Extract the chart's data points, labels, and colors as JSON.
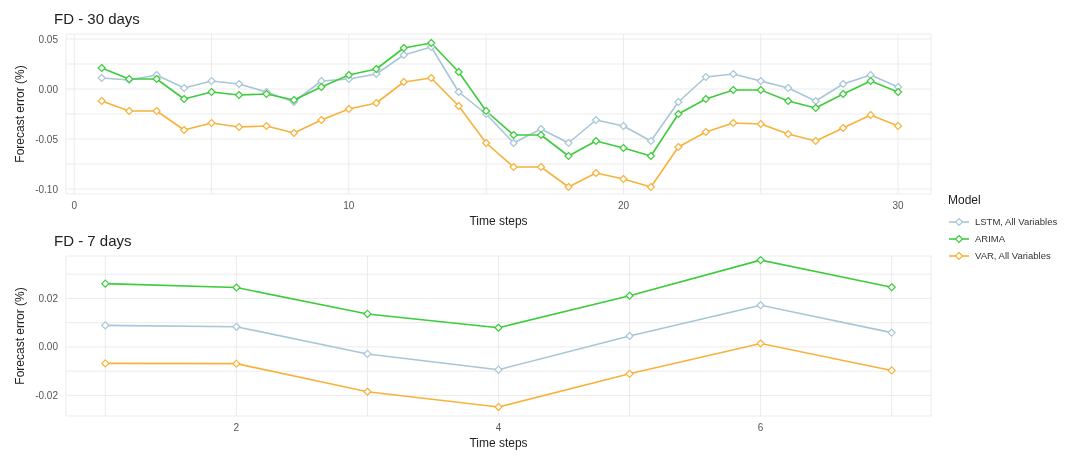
{
  "chart_data": [
    {
      "type": "line",
      "title": "FD - 30 days",
      "xlabel": "Time steps",
      "ylabel": "Forecast error (%)",
      "legend_title": "Model",
      "legend": "right",
      "grid": true,
      "marker": "diamond",
      "x": [
        1,
        2,
        3,
        4,
        5,
        6,
        7,
        8,
        9,
        10,
        11,
        12,
        13,
        14,
        15,
        16,
        17,
        18,
        19,
        20,
        21,
        22,
        23,
        24,
        25,
        26,
        27,
        28,
        29,
        30
      ],
      "xlim": [
        -0.3,
        31.2
      ],
      "xticks": [
        0,
        {
          "value": 5,
          "label": null
        },
        10,
        {
          "value": 15,
          "label": null
        },
        20,
        {
          "value": 25,
          "label": null
        },
        30
      ],
      "ylim": [
        -0.105,
        0.055
      ],
      "yticks": [
        {
          "value": -0.1,
          "label": "-0.10"
        },
        {
          "value": -0.075,
          "label": null
        },
        -0.05,
        {
          "value": -0.025,
          "label": null
        },
        {
          "value": 0,
          "label": "0.00"
        },
        {
          "value": 0.025,
          "label": null
        },
        0.05
      ],
      "series": [
        {
          "name": "LSTM, All Variables",
          "color": "#a9c6d6",
          "values": [
            0.011,
            0.009,
            0.014,
            0.001,
            0.008,
            0.005,
            -0.003,
            -0.013,
            0.008,
            0.01,
            0.015,
            0.034,
            0.042,
            -0.003,
            -0.025,
            -0.054,
            -0.04,
            -0.054,
            -0.031,
            -0.037,
            -0.052,
            -0.013,
            0.012,
            0.015,
            0.008,
            0.001,
            -0.012,
            0.005,
            0.014,
            0.002
          ]
        },
        {
          "name": "ARIMA",
          "color": "#3ccc3c",
          "values": [
            0.021,
            0.01,
            0.01,
            -0.01,
            -0.003,
            -0.006,
            -0.005,
            -0.011,
            0.002,
            0.014,
            0.02,
            0.041,
            0.046,
            0.017,
            -0.022,
            -0.046,
            -0.046,
            -0.067,
            -0.052,
            -0.059,
            -0.067,
            -0.025,
            -0.01,
            -0.001,
            -0.001,
            -0.012,
            -0.019,
            -0.005,
            0.008,
            -0.003
          ]
        },
        {
          "name": "VAR, All Variables",
          "color": "#f7b23b",
          "values": [
            -0.012,
            -0.022,
            -0.022,
            -0.041,
            -0.034,
            -0.038,
            -0.037,
            -0.044,
            -0.031,
            -0.02,
            -0.014,
            0.007,
            0.011,
            -0.017,
            -0.054,
            -0.078,
            -0.078,
            -0.098,
            -0.084,
            -0.09,
            -0.098,
            -0.058,
            -0.043,
            -0.034,
            -0.035,
            -0.045,
            -0.052,
            -0.039,
            -0.026,
            -0.037
          ]
        }
      ]
    },
    {
      "type": "line",
      "title": "FD - 7 days",
      "xlabel": "Time steps",
      "ylabel": "Forecast error (%)",
      "grid": true,
      "marker": "diamond",
      "x": [
        1,
        2,
        3,
        4,
        5,
        6,
        7
      ],
      "xlim": [
        0.7,
        7.3
      ],
      "xticks": [
        {
          "value": 1,
          "label": null
        },
        2,
        {
          "value": 3,
          "label": null
        },
        4,
        {
          "value": 5,
          "label": null
        },
        6,
        {
          "value": 7,
          "label": null
        }
      ],
      "ylim": [
        -0.0285,
        0.0375
      ],
      "yticks": [
        -0.02,
        {
          "value": -0.01,
          "label": null
        },
        {
          "value": 0,
          "label": "0.00"
        },
        {
          "value": 0.01,
          "label": null
        },
        0.02,
        {
          "value": 0.03,
          "label": null
        }
      ],
      "series": [
        {
          "color": "#a9c6d6",
          "values": [
            0.0089,
            0.0083,
            -0.0029,
            -0.0094,
            0.0045,
            0.0172,
            0.0059
          ]
        },
        {
          "color": "#3ccc3c",
          "values": [
            0.0261,
            0.0245,
            0.0136,
            0.0079,
            0.0211,
            0.0358,
            0.0246
          ]
        },
        {
          "color": "#f7b23b",
          "values": [
            -0.0068,
            -0.0069,
            -0.0185,
            -0.0248,
            -0.0111,
            0.0014,
            -0.0097
          ]
        }
      ]
    }
  ]
}
